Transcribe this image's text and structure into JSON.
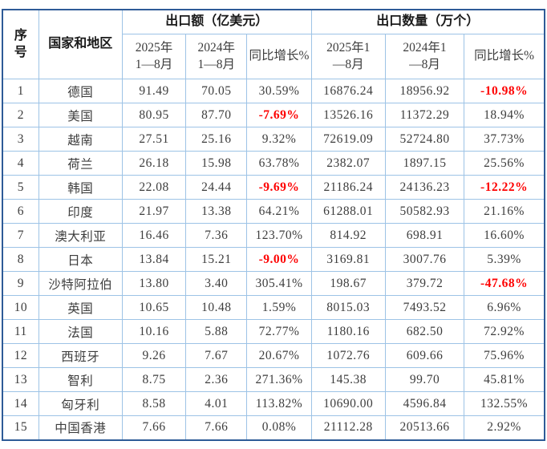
{
  "colors": {
    "grid": "#9dc3e6",
    "outer": "#2e5b97",
    "header_text": "#1a1a1a",
    "data_text": "#3d3d3d",
    "negative": "#fe0000",
    "background": "#ffffff"
  },
  "chart_data": {
    "type": "table",
    "header": {
      "serial": "序\n号",
      "country": "国家和地区",
      "groups": [
        {
          "label": "出口额（亿美元）",
          "subs": [
            "2025年\n1—8月",
            "2024年\n1—8月",
            "同比增长%"
          ]
        },
        {
          "label": "出口数量（万个）",
          "subs": [
            "2025年1\n—8月",
            "2024年1\n—8月",
            "同比增长%"
          ]
        }
      ]
    },
    "rows": [
      {
        "no": "1",
        "country": "德国",
        "v2025": "91.49",
        "v2024": "70.05",
        "vyoy": "30.59%",
        "q2025": "16876.24",
        "q2024": "18956.92",
        "qyoy": "-10.98%"
      },
      {
        "no": "2",
        "country": "美国",
        "v2025": "80.95",
        "v2024": "87.70",
        "vyoy": "-7.69%",
        "q2025": "13526.16",
        "q2024": "11372.29",
        "qyoy": "18.94%"
      },
      {
        "no": "3",
        "country": "越南",
        "v2025": "27.51",
        "v2024": "25.16",
        "vyoy": "9.32%",
        "q2025": "72619.09",
        "q2024": "52724.80",
        "qyoy": "37.73%"
      },
      {
        "no": "4",
        "country": "荷兰",
        "v2025": "26.18",
        "v2024": "15.98",
        "vyoy": "63.78%",
        "q2025": "2382.07",
        "q2024": "1897.15",
        "qyoy": "25.56%"
      },
      {
        "no": "5",
        "country": "韩国",
        "v2025": "22.08",
        "v2024": "24.44",
        "vyoy": "-9.69%",
        "q2025": "21186.24",
        "q2024": "24136.23",
        "qyoy": "-12.22%"
      },
      {
        "no": "6",
        "country": "印度",
        "v2025": "21.97",
        "v2024": "13.38",
        "vyoy": "64.21%",
        "q2025": "61288.01",
        "q2024": "50582.93",
        "qyoy": "21.16%"
      },
      {
        "no": "7",
        "country": "澳大利亚",
        "v2025": "16.46",
        "v2024": "7.36",
        "vyoy": "123.70%",
        "q2025": "814.92",
        "q2024": "698.91",
        "qyoy": "16.60%"
      },
      {
        "no": "8",
        "country": "日本",
        "v2025": "13.84",
        "v2024": "15.21",
        "vyoy": "-9.00%",
        "q2025": "3169.81",
        "q2024": "3007.76",
        "qyoy": "5.39%"
      },
      {
        "no": "9",
        "country": "沙特阿拉伯",
        "v2025": "13.80",
        "v2024": "3.40",
        "vyoy": "305.41%",
        "q2025": "198.67",
        "q2024": "379.72",
        "qyoy": "-47.68%"
      },
      {
        "no": "10",
        "country": "英国",
        "v2025": "10.65",
        "v2024": "10.48",
        "vyoy": "1.59%",
        "q2025": "8015.03",
        "q2024": "7493.52",
        "qyoy": "6.96%"
      },
      {
        "no": "11",
        "country": "法国",
        "v2025": "10.16",
        "v2024": "5.88",
        "vyoy": "72.77%",
        "q2025": "1180.16",
        "q2024": "682.50",
        "qyoy": "72.92%"
      },
      {
        "no": "12",
        "country": "西班牙",
        "v2025": "9.26",
        "v2024": "7.67",
        "vyoy": "20.67%",
        "q2025": "1072.76",
        "q2024": "609.66",
        "qyoy": "75.96%"
      },
      {
        "no": "13",
        "country": "智利",
        "v2025": "8.75",
        "v2024": "2.36",
        "vyoy": "271.36%",
        "q2025": "145.38",
        "q2024": "99.70",
        "qyoy": "45.81%"
      },
      {
        "no": "14",
        "country": "匈牙利",
        "v2025": "8.58",
        "v2024": "4.01",
        "vyoy": "113.82%",
        "q2025": "10690.00",
        "q2024": "4596.84",
        "qyoy": "132.55%"
      },
      {
        "no": "15",
        "country": "中国香港",
        "v2025": "7.66",
        "v2024": "7.66",
        "vyoy": "0.08%",
        "q2025": "21112.28",
        "q2024": "20513.66",
        "qyoy": "2.92%"
      }
    ]
  }
}
